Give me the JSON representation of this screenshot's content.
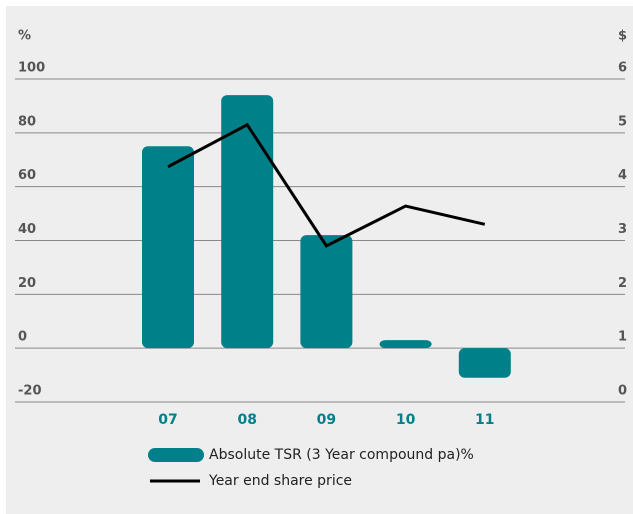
{
  "chart_data": {
    "type": "bar",
    "ylabel": "%",
    "y2label": "$",
    "categories": [
      "07",
      "08",
      "09",
      "10",
      "11"
    ],
    "series": [
      {
        "name": "Absolute TSR (3 Year compound pa)%",
        "type": "bar",
        "color": "#00818a",
        "values": [
          75,
          94,
          42,
          3,
          -11
        ]
      },
      {
        "name": "Year end share price",
        "type": "line",
        "axis": "y2",
        "color": "#000000",
        "values": [
          4.37,
          5.15,
          2.9,
          3.64,
          3.3
        ]
      }
    ],
    "ylim": [
      -20,
      100
    ],
    "yticks": [
      -20,
      0,
      20,
      40,
      60,
      80,
      100
    ],
    "y2lim": [
      0,
      6
    ],
    "y2ticks": [
      0,
      1,
      2,
      3,
      4,
      5,
      6
    ],
    "grid": true
  }
}
